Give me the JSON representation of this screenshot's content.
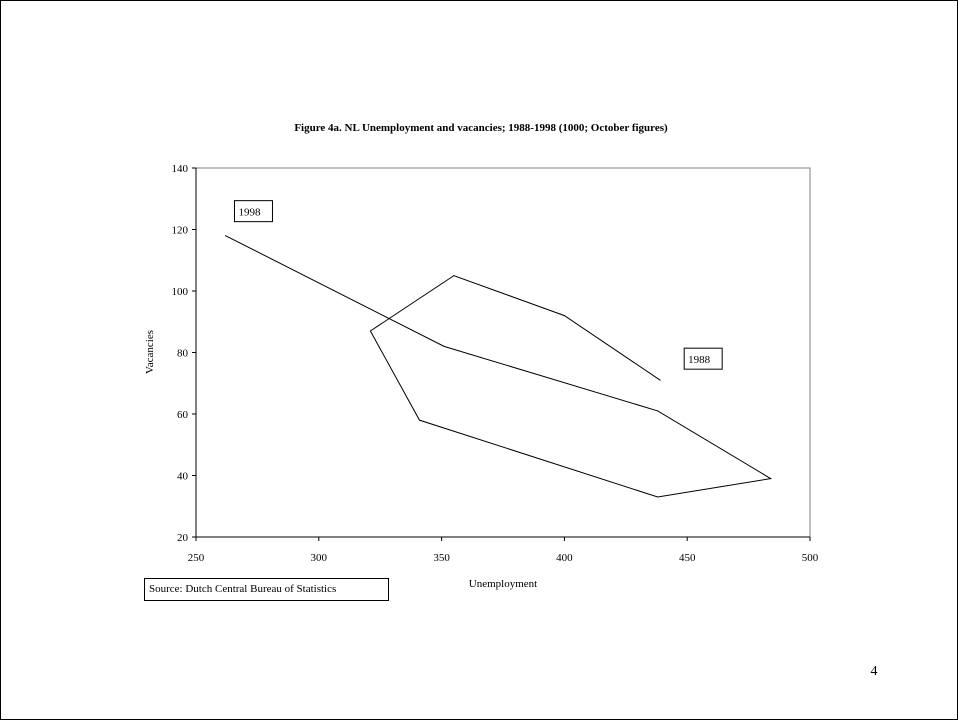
{
  "page": {
    "number": "4"
  },
  "source_note": "Source: Dutch Central Bureau of Statistics",
  "chart_data": {
    "type": "line",
    "title": "Figure 4a. NL Unemployment and vacancies; 1988-1998 (1000; October figures)",
    "xlabel": "Unemployment",
    "ylabel": "Vacancies",
    "xlim": [
      250,
      500
    ],
    "ylim": [
      20,
      140
    ],
    "xticks": [
      250,
      300,
      350,
      400,
      450,
      500
    ],
    "yticks": [
      20,
      40,
      60,
      80,
      100,
      120,
      140
    ],
    "grid": false,
    "legend": "none",
    "series": [
      {
        "points": [
          {
            "x": 439,
            "y": 71
          },
          {
            "x": 400,
            "y": 92
          },
          {
            "x": 355,
            "y": 105
          },
          {
            "x": 321,
            "y": 87
          },
          {
            "x": 341,
            "y": 58
          },
          {
            "x": 438,
            "y": 33
          },
          {
            "x": 484,
            "y": 39
          },
          {
            "x": 438,
            "y": 61
          },
          {
            "x": 351,
            "y": 82
          },
          {
            "x": 262,
            "y": 118
          }
        ],
        "color": "#000000"
      }
    ],
    "annotations": [
      {
        "text": "1988",
        "x": 439,
        "y": 71
      },
      {
        "text": "1998",
        "x": 262,
        "y": 118
      }
    ]
  }
}
